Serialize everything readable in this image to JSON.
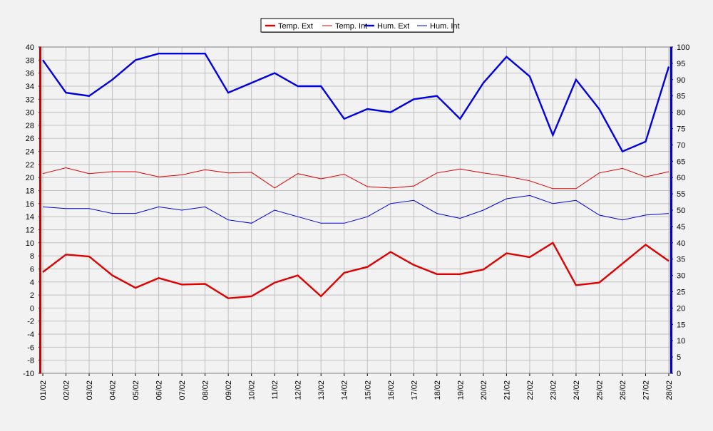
{
  "chart_data": {
    "type": "line",
    "title": "",
    "xlabel": "",
    "ylabel": "",
    "x": [
      "01/02",
      "02/02",
      "03/02",
      "04/02",
      "05/02",
      "06/02",
      "07/02",
      "08/02",
      "09/02",
      "10/02",
      "11/02",
      "12/02",
      "13/02",
      "14/02",
      "15/02",
      "16/02",
      "17/02",
      "18/02",
      "19/02",
      "20/02",
      "21/02",
      "22/02",
      "23/02",
      "24/02",
      "25/02",
      "26/02",
      "27/02",
      "28/02"
    ],
    "y_left": {
      "min": -10,
      "max": 40,
      "step": 2,
      "color": "#cc0000"
    },
    "y_right": {
      "min": 0,
      "max": 100,
      "step": 5,
      "color": "#0000cc"
    },
    "grid": true,
    "legend_position": "top-center",
    "series": [
      {
        "name": "Temp. Ext",
        "axis": "left",
        "color": "#e00000",
        "weight": "thick",
        "values": [
          5.5,
          8.2,
          7.9,
          5.0,
          3.1,
          4.6,
          3.6,
          3.7,
          1.5,
          1.8,
          3.9,
          5.0,
          1.8,
          5.4,
          6.3,
          8.6,
          6.6,
          5.2,
          5.2,
          5.9,
          8.4,
          7.8,
          10.0,
          3.5,
          3.9,
          6.8,
          9.7,
          7.2
        ]
      },
      {
        "name": "Temp. Int",
        "axis": "left",
        "color": "#e00000",
        "weight": "thin",
        "values": [
          20.6,
          21.5,
          20.6,
          20.9,
          20.9,
          20.1,
          20.4,
          21.2,
          20.7,
          20.8,
          18.4,
          20.6,
          19.8,
          20.5,
          18.6,
          18.4,
          18.7,
          20.7,
          21.3,
          20.7,
          20.2,
          19.5,
          18.3,
          18.3,
          20.7,
          21.4,
          20.1,
          20.9
        ]
      },
      {
        "name": "Hum. Ext",
        "axis": "right",
        "color": "#0000e0",
        "weight": "thick",
        "values": [
          96,
          86,
          85,
          90,
          96,
          98,
          98,
          98,
          86,
          89,
          92,
          88,
          88,
          78,
          81,
          80,
          84,
          85,
          78,
          89,
          97,
          91,
          73,
          90,
          81,
          68,
          71,
          94
        ]
      },
      {
        "name": "Hum. Int",
        "axis": "right",
        "color": "#0000e0",
        "weight": "thin",
        "values": [
          51,
          50.5,
          50.5,
          49,
          49,
          51,
          50,
          51,
          47,
          46,
          50,
          48,
          46,
          46,
          48,
          52,
          53,
          49,
          47.5,
          50,
          53.5,
          54.5,
          52,
          53,
          48.5,
          47,
          48.5,
          49
        ]
      }
    ]
  }
}
